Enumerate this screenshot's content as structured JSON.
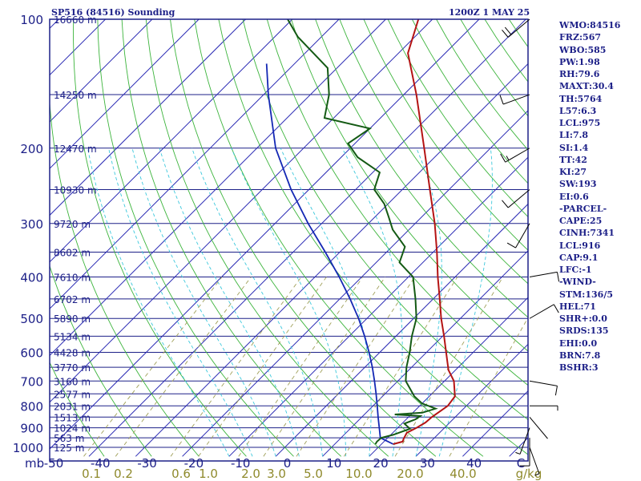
{
  "header": {
    "title": "SP516 (84516) Sounding",
    "datetime": "1200Z  1 MAY 25"
  },
  "indices": [
    "WMO:84516",
    "FRZ:567",
    "WBO:585",
    "PW:1.98",
    "RH:79.6",
    "MAXT:30.4",
    "TH:5764",
    "L57:6.3",
    "LCL:975",
    "LI:7.8",
    "SI:1.4",
    "TT:42",
    "KI:27",
    "SW:193",
    "EI:0.6",
    "-PARCEL-",
    "CAPE:25",
    "CINH:7341",
    "LCL:916",
    "CAP:9.1",
    "LFC:-1",
    "-WIND-",
    "STM:136/5",
    "HEL:71",
    "SHR+:0.0",
    "SRDS:135",
    "EHI:0.0",
    "BRN:7.8",
    "BSHR:3"
  ],
  "colors": {
    "frame": "#1d2088",
    "isobar": "#1d2088",
    "isotherm": "#2a2ab4",
    "dry_adiabat": "#3cb43c",
    "moist_adiabat": "#3cc8dc",
    "mixing_ratio": "#a0a05a",
    "temperature": "#b41414",
    "dewpoint": "#145a14",
    "parcel": "#1428b4",
    "wind_barb": "#000000"
  },
  "chart_data": {
    "type": "line",
    "subtype": "skew-t log-p sounding",
    "x_axis_label": "mb",
    "x_range_degC": [
      -50,
      50
    ],
    "y_range_hPa": [
      1000,
      100
    ],
    "y_scale": "log",
    "pressure_ticks": [
      100,
      200,
      300,
      400,
      500,
      600,
      700,
      800,
      900,
      1000
    ],
    "temperature_ticks": [
      -50,
      -40,
      -30,
      -20,
      -10,
      0,
      10,
      20,
      30,
      40,
      50
    ],
    "temperature_tick_labels": [
      "-50",
      "-40",
      "-30",
      "-20",
      "-10",
      "0",
      "10",
      "20",
      "30",
      "40",
      "C"
    ],
    "mixing_ratio_label_positions": [
      1,
      2,
      3,
      4,
      5,
      6,
      7,
      8,
      9,
      10
    ],
    "mixing_ratio_labels": [
      "0.1",
      "0.2",
      "0.6",
      "1.0",
      "2.0",
      "3.0",
      "5.0",
      "10.0",
      "20.0",
      "40.0"
    ],
    "mixing_ratio_unit": "g/kg",
    "height_labels": [
      {
        "p": 100,
        "label": "16660 m"
      },
      {
        "p": 150,
        "label": "14250 m"
      },
      {
        "p": 200,
        "label": "12470 m"
      },
      {
        "p": 250,
        "label": "10930 m"
      },
      {
        "p": 300,
        "label": "9720 m"
      },
      {
        "p": 350,
        "label": "8602 m"
      },
      {
        "p": 400,
        "label": "7610 m"
      },
      {
        "p": 450,
        "label": "6702 m"
      },
      {
        "p": 500,
        "label": "5890 m"
      },
      {
        "p": 550,
        "label": "5134 m"
      },
      {
        "p": 600,
        "label": "4428 m"
      },
      {
        "p": 650,
        "label": "3770 m"
      },
      {
        "p": 700,
        "label": "3160 m"
      },
      {
        "p": 750,
        "label": "2577 m"
      },
      {
        "p": 800,
        "label": "2031 m"
      },
      {
        "p": 850,
        "label": "1513 m"
      },
      {
        "p": 900,
        "label": "1024 m"
      },
      {
        "p": 950,
        "label": "563 m"
      },
      {
        "p": 1000,
        "label": "125 m"
      }
    ],
    "series": [
      {
        "key": "temperature",
        "points": [
          [
            983,
            22.5
          ],
          [
            970,
            24.0
          ],
          [
            955,
            23.6
          ],
          [
            925,
            23.0
          ],
          [
            900,
            24.0
          ],
          [
            875,
            24.8
          ],
          [
            850,
            25.0
          ],
          [
            800,
            26.0
          ],
          [
            760,
            25.5
          ],
          [
            700,
            22.0
          ],
          [
            660,
            18.5
          ],
          [
            600,
            14.2
          ],
          [
            550,
            10.3
          ],
          [
            500,
            5.9
          ],
          [
            450,
            1.4
          ],
          [
            400,
            -3.7
          ],
          [
            350,
            -9.2
          ],
          [
            300,
            -15.8
          ],
          [
            250,
            -24.1
          ],
          [
            200,
            -34.2
          ],
          [
            150,
            -47.3
          ],
          [
            120,
            -58.0
          ],
          [
            100,
            -63.0
          ]
        ]
      },
      {
        "key": "dewpoint",
        "points": [
          [
            983,
            18.7
          ],
          [
            970,
            18.5
          ],
          [
            950,
            18.6
          ],
          [
            935,
            20.5
          ],
          [
            905,
            22.8
          ],
          [
            880,
            20.5
          ],
          [
            860,
            22.0
          ],
          [
            845,
            22.3
          ],
          [
            838,
            16.5
          ],
          [
            830,
            22.0
          ],
          [
            812,
            24.0
          ],
          [
            790,
            20.0
          ],
          [
            760,
            16.8
          ],
          [
            700,
            11.7
          ],
          [
            650,
            8.9
          ],
          [
            600,
            6.4
          ],
          [
            550,
            3.4
          ],
          [
            500,
            0.6
          ],
          [
            450,
            -3.8
          ],
          [
            400,
            -9.0
          ],
          [
            370,
            -15.0
          ],
          [
            340,
            -17.2
          ],
          [
            310,
            -23.5
          ],
          [
            290,
            -27.0
          ],
          [
            270,
            -30.8
          ],
          [
            250,
            -36.0
          ],
          [
            228,
            -38.5
          ],
          [
            210,
            -46.5
          ],
          [
            195,
            -51.5
          ],
          [
            180,
            -50.0
          ],
          [
            170,
            -62.0
          ],
          [
            150,
            -66.0
          ],
          [
            130,
            -72.0
          ],
          [
            110,
            -85.0
          ],
          [
            100,
            -91.0
          ]
        ]
      },
      {
        "key": "parcel",
        "points": [
          [
            983,
            22.5
          ],
          [
            950,
            18.4
          ],
          [
            916,
            16.8
          ],
          [
            850,
            13.5
          ],
          [
            800,
            10.9
          ],
          [
            750,
            8.1
          ],
          [
            700,
            5.0
          ],
          [
            650,
            1.6
          ],
          [
            600,
            -2.3
          ],
          [
            550,
            -6.7
          ],
          [
            500,
            -11.8
          ],
          [
            450,
            -17.8
          ],
          [
            400,
            -24.8
          ],
          [
            350,
            -33.1
          ],
          [
            300,
            -42.9
          ],
          [
            250,
            -53.8
          ],
          [
            200,
            -66.0
          ],
          [
            150,
            -79.0
          ],
          [
            127,
            -86.0
          ]
        ]
      }
    ],
    "wind_barbs": [
      {
        "p": 1000,
        "dir": 160,
        "spd": 5
      },
      {
        "p": 950,
        "dir": 180,
        "spd": 10
      },
      {
        "p": 900,
        "dir": 200,
        "spd": 5
      },
      {
        "p": 850,
        "dir": 140,
        "spd": 0
      },
      {
        "p": 800,
        "dir": 90,
        "spd": 5
      },
      {
        "p": 700,
        "dir": 100,
        "spd": 10
      },
      {
        "p": 500,
        "dir": 60,
        "spd": 10
      },
      {
        "p": 400,
        "dir": 80,
        "spd": 10
      },
      {
        "p": 300,
        "dir": 210,
        "spd": 10
      },
      {
        "p": 250,
        "dir": 230,
        "spd": 10
      },
      {
        "p": 200,
        "dir": 240,
        "spd": 15
      },
      {
        "p": 150,
        "dir": 250,
        "spd": 10
      },
      {
        "p": 100,
        "dir": 230,
        "spd": 20
      }
    ]
  }
}
